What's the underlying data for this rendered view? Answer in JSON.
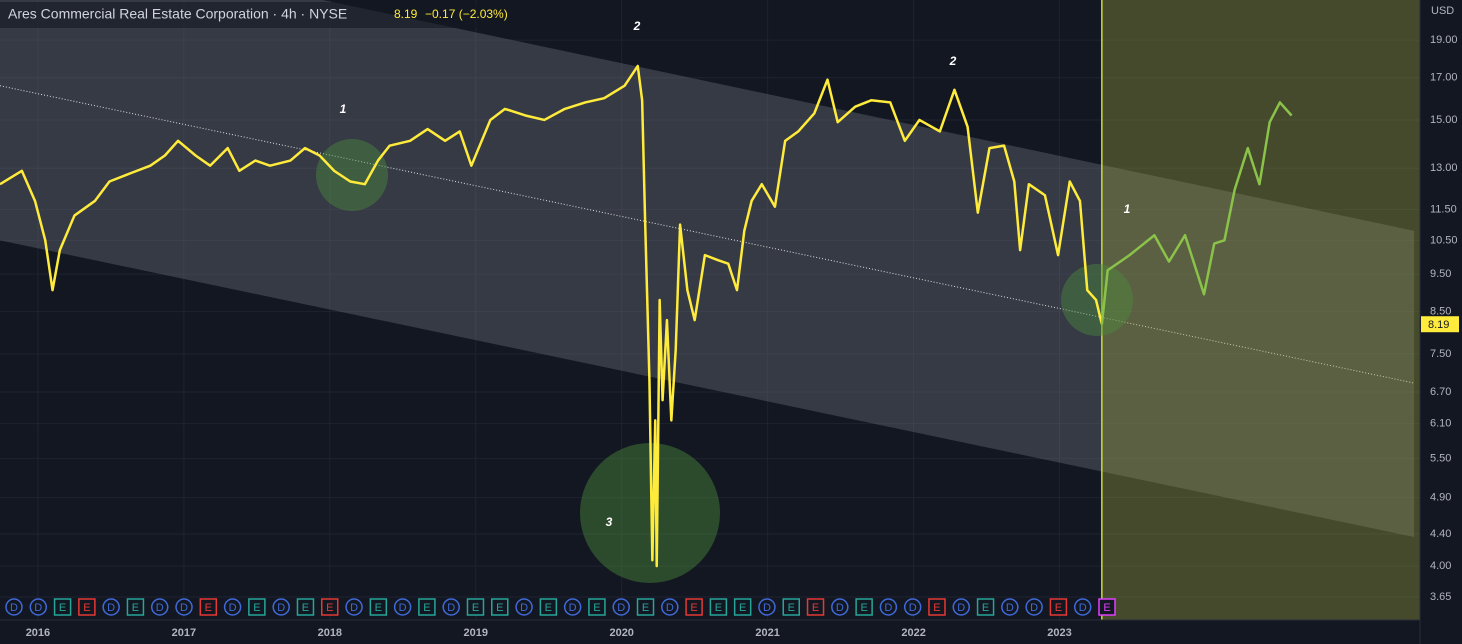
{
  "chart_data": {
    "type": "line",
    "title": "Ares Commercial Real Estate Corporation · 4h · NYSE",
    "last_price": "8.19",
    "change": "−0.17 (−2.03%)",
    "currency": "USD",
    "price_tag": 8.19,
    "log_scale": true,
    "grid": true,
    "xlim": [
      2015.74,
      2025.47
    ],
    "xticks": [
      2016,
      2017,
      2018,
      2019,
      2020,
      2021,
      2022,
      2023
    ],
    "ylim": [
      3.41,
      21.4
    ],
    "yticks": [
      {
        "value": 3.65,
        "label": "3.65"
      },
      {
        "value": 4,
        "label": "4.00"
      },
      {
        "value": 4.4,
        "label": "4.40"
      },
      {
        "value": 4.9,
        "label": "4.90"
      },
      {
        "value": 5.5,
        "label": "5.50"
      },
      {
        "value": 6.1,
        "label": "6.10"
      },
      {
        "value": 6.7,
        "label": "6.70"
      },
      {
        "value": 7.5,
        "label": "7.50"
      },
      {
        "value": 8.5,
        "label": "8.50"
      },
      {
        "value": 9.5,
        "label": "9.50"
      },
      {
        "value": 10.5,
        "label": "10.50"
      },
      {
        "value": 11.5,
        "label": "11.50"
      },
      {
        "value": 13,
        "label": "13.00"
      },
      {
        "value": 15,
        "label": "15.00"
      },
      {
        "value": 17,
        "label": "17.00"
      },
      {
        "value": 19,
        "label": "19.00"
      }
    ],
    "series": [
      {
        "color": "#ffeb3b",
        "x": [
          2015.74,
          2015.89,
          2015.98,
          2016.05,
          2016.1,
          2016.15,
          2016.25,
          2016.39,
          2016.49,
          2016.63,
          2016.77,
          2016.87,
          2016.96,
          2017.08,
          2017.18,
          2017.3,
          2017.38,
          2017.49,
          2017.59,
          2017.73,
          2017.83,
          2017.93,
          2018.03,
          2018.14,
          2018.24,
          2018.33,
          2018.41,
          2018.55,
          2018.67,
          2018.79,
          2018.89,
          2018.97,
          2019.1,
          2019.2,
          2019.34,
          2019.47,
          2019.61,
          2019.75,
          2019.88,
          2020.02,
          2020.11,
          2020.14,
          2020.16,
          2020.19,
          2020.21,
          2020.23,
          2020.24,
          2020.26,
          2020.28,
          2020.31,
          2020.34,
          2020.37,
          2020.4,
          2020.45,
          2020.5,
          2020.57,
          2020.66,
          2020.73,
          2020.79,
          2020.84,
          2020.89,
          2020.96,
          2021.05,
          2021.12,
          2021.21,
          2021.32,
          2021.41,
          2021.48,
          2021.6,
          2021.71,
          2021.84,
          2021.94,
          2022.04,
          2022.18,
          2022.28,
          2022.37,
          2022.44,
          2022.52,
          2022.62,
          2022.69,
          2022.73,
          2022.79,
          2022.9,
          2022.99,
          2023.07,
          2023.14,
          2023.19,
          2023.25,
          2023.29
        ],
        "values": [
          12.4,
          12.9,
          11.8,
          10.5,
          9.06,
          10.2,
          11.3,
          11.8,
          12.5,
          12.8,
          13.1,
          13.5,
          14.1,
          13.5,
          13.1,
          13.8,
          12.9,
          13.3,
          13.1,
          13.3,
          13.8,
          13.5,
          12.9,
          12.5,
          12.4,
          13.3,
          13.9,
          14.1,
          14.6,
          14.1,
          14.5,
          13.1,
          15.0,
          15.5,
          15.2,
          15.0,
          15.5,
          15.8,
          16.0,
          16.6,
          17.6,
          15.9,
          11.2,
          6.94,
          4.07,
          6.16,
          4.0,
          8.8,
          6.54,
          8.29,
          6.16,
          7.59,
          11.0,
          9.06,
          8.29,
          10.05,
          9.9,
          9.8,
          9.06,
          10.8,
          11.8,
          12.4,
          11.6,
          14.1,
          14.5,
          15.3,
          16.9,
          14.9,
          15.6,
          15.9,
          15.8,
          14.1,
          15.0,
          14.5,
          16.4,
          14.7,
          11.4,
          13.8,
          13.9,
          12.5,
          10.2,
          12.4,
          12.0,
          10.05,
          12.5,
          11.8,
          9.06,
          8.8,
          8.19
        ]
      },
      {
        "color": "#8bc34a",
        "x": [
          2023.29,
          2023.33,
          2023.48,
          2023.65,
          2023.75,
          2023.86,
          2023.99,
          2024.06,
          2024.13,
          2024.2,
          2024.29,
          2024.37,
          2024.44,
          2024.51,
          2024.59
        ],
        "values": [
          8.19,
          9.61,
          10.05,
          10.66,
          9.86,
          10.66,
          8.95,
          10.4,
          10.5,
          12.2,
          13.8,
          12.4,
          14.9,
          15.8,
          15.2
        ]
      }
    ],
    "channel": {
      "x": [
        2015.74,
        2025.43
      ],
      "upper": [
        26.2,
        10.8
      ],
      "middle": [
        16.6,
        6.88
      ],
      "lower": [
        10.5,
        4.36
      ]
    },
    "projection_start": 2023.29,
    "annotations": [
      "1",
      "2",
      "2",
      "3",
      "1"
    ],
    "events": [
      "D",
      "D",
      "E",
      "E",
      "D",
      "E",
      "D",
      "D",
      "E",
      "D",
      "E",
      "D",
      "E",
      "E",
      "D",
      "E",
      "D",
      "E",
      "D",
      "E",
      "E",
      "D",
      "E",
      "D",
      "E",
      "D",
      "E",
      "D",
      "E",
      "E",
      "E",
      "D",
      "E",
      "E",
      "D",
      "E",
      "D",
      "D",
      "E",
      "D",
      "E",
      "D",
      "D",
      "E",
      "D",
      "E"
    ]
  }
}
